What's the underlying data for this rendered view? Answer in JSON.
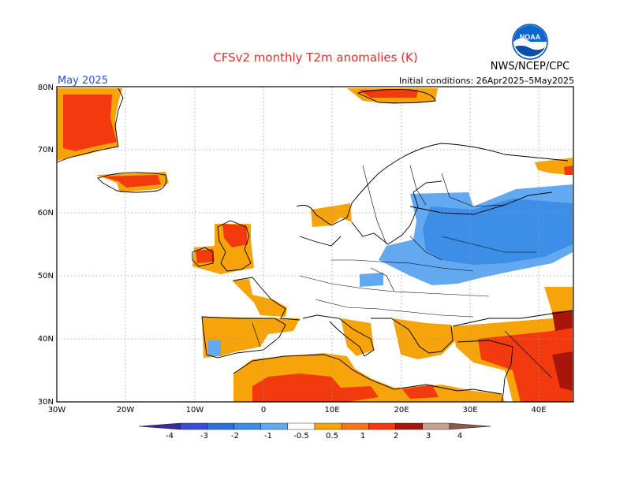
{
  "header": {
    "title": "CFSv2 monthly T2m anomalies (K)",
    "agency": "NWS/NCEP/CPC",
    "logo_text": "NOAA",
    "month": "May 2025",
    "initial_conditions": "Initial conditions: 26Apr2025–5May2025"
  },
  "axes": {
    "lat_labels": [
      "80N",
      "70N",
      "60N",
      "50N",
      "40N",
      "30N"
    ],
    "lon_labels": [
      "30W",
      "20W",
      "10W",
      "0",
      "10E",
      "20E",
      "30E",
      "40E"
    ]
  },
  "colorbar": {
    "colors": [
      "#3a2a9e",
      "#3b4bd6",
      "#2f6fdc",
      "#3c8ee6",
      "#63a9f2",
      "#ffffff",
      "#f7a30a",
      "#f7741a",
      "#f23a0e",
      "#a8150a",
      "#c79f93",
      "#8c5a4a"
    ],
    "labels": [
      "-4",
      "-3",
      "-2",
      "-1",
      "-0.5",
      "0.5",
      "1",
      "2",
      "3",
      "4"
    ]
  },
  "colors": {
    "title": "#e0302a",
    "month": "#2b4fd8",
    "grid": "#9a9a9a"
  }
}
